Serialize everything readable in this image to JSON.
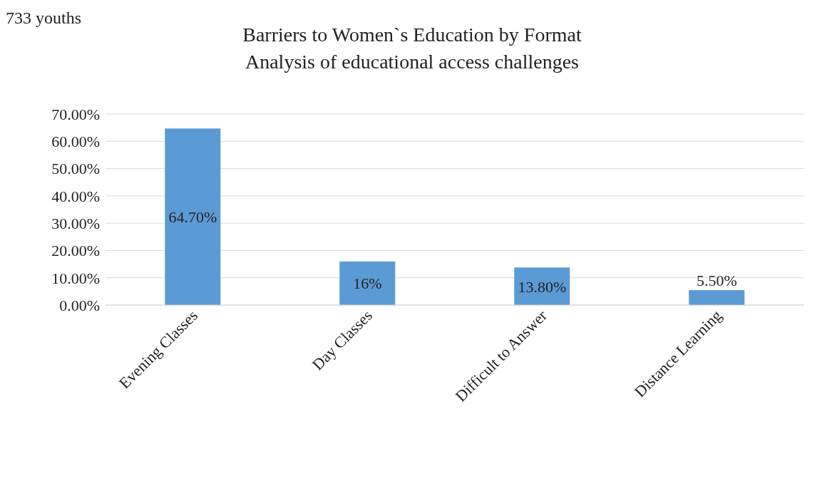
{
  "chart_data": {
    "type": "bar",
    "title": "Barriers to Women`s Education by Format",
    "subtitle": "Analysis of educational access challenges",
    "annotations": [
      "733 youths"
    ],
    "categories": [
      "Evening Classes",
      "Day Classes",
      "Difficult to Answer",
      "Distance Learning"
    ],
    "values": [
      64.7,
      16,
      13.8,
      5.5
    ],
    "color": "#5b9bd5",
    "value_labels": [
      "64.70%",
      "16%",
      "13.80%",
      "5.50%"
    ],
    "ylim": [
      0,
      70
    ],
    "yticks": [
      {
        "value": 0,
        "label": "0.00%"
      },
      {
        "value": 10,
        "label": "10.00%"
      },
      {
        "value": 20,
        "label": "20.00%"
      },
      {
        "value": 30,
        "label": "30.00%"
      },
      {
        "value": 40,
        "label": "40.00%"
      },
      {
        "value": 50,
        "label": "50.00%"
      },
      {
        "value": 60,
        "label": "60.00%"
      },
      {
        "value": 70,
        "label": "70.00%"
      }
    ],
    "grid": "y",
    "legend": false
  }
}
